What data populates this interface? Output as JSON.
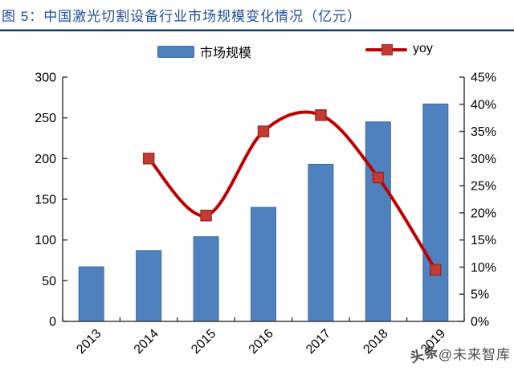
{
  "title": {
    "figure_label": "图 5：",
    "text": "中国激光切割设备行业市场规模变化情况（亿元）"
  },
  "legend": {
    "items": [
      {
        "label": "市场规模",
        "type": "bar"
      },
      {
        "label": "yoy",
        "type": "line"
      }
    ]
  },
  "watermark": {
    "prefix": "头条",
    "suffix": "@未来智库"
  },
  "colors": {
    "bar_fill": "#4E81BD",
    "bar_border": "#3A6BA5",
    "line": "#C00000",
    "marker_fill": "#C33B33",
    "marker_border": "#9C2B25",
    "axis": "#3F3F3F",
    "tick_text": "#000000",
    "title_text": "#1F4E9B",
    "rule": "#17375E"
  },
  "chart_data": {
    "type": "bar",
    "title": "中国激光切割设备行业市场规模变化情况（亿元）",
    "categories": [
      "2013",
      "2014",
      "2015",
      "2016",
      "2017",
      "2018",
      "2019"
    ],
    "series": [
      {
        "name": "市场规模",
        "type": "bar",
        "axis": "left",
        "values": [
          67,
          87,
          104,
          140,
          193,
          245,
          267
        ]
      },
      {
        "name": "yoy",
        "type": "line",
        "axis": "right",
        "unit": "%",
        "values": [
          null,
          30,
          19.5,
          35,
          38,
          26.5,
          9.5
        ]
      }
    ],
    "left_axis": {
      "min": 0,
      "max": 300,
      "step": 50,
      "ticks": [
        "0",
        "50",
        "100",
        "150",
        "200",
        "250",
        "300"
      ]
    },
    "right_axis": {
      "min": 0,
      "max": 45,
      "step": 5,
      "ticks": [
        "0%",
        "5%",
        "10%",
        "15%",
        "20%",
        "25%",
        "30%",
        "35%",
        "40%",
        "45%"
      ]
    },
    "grid": false,
    "legend_position": "top"
  }
}
